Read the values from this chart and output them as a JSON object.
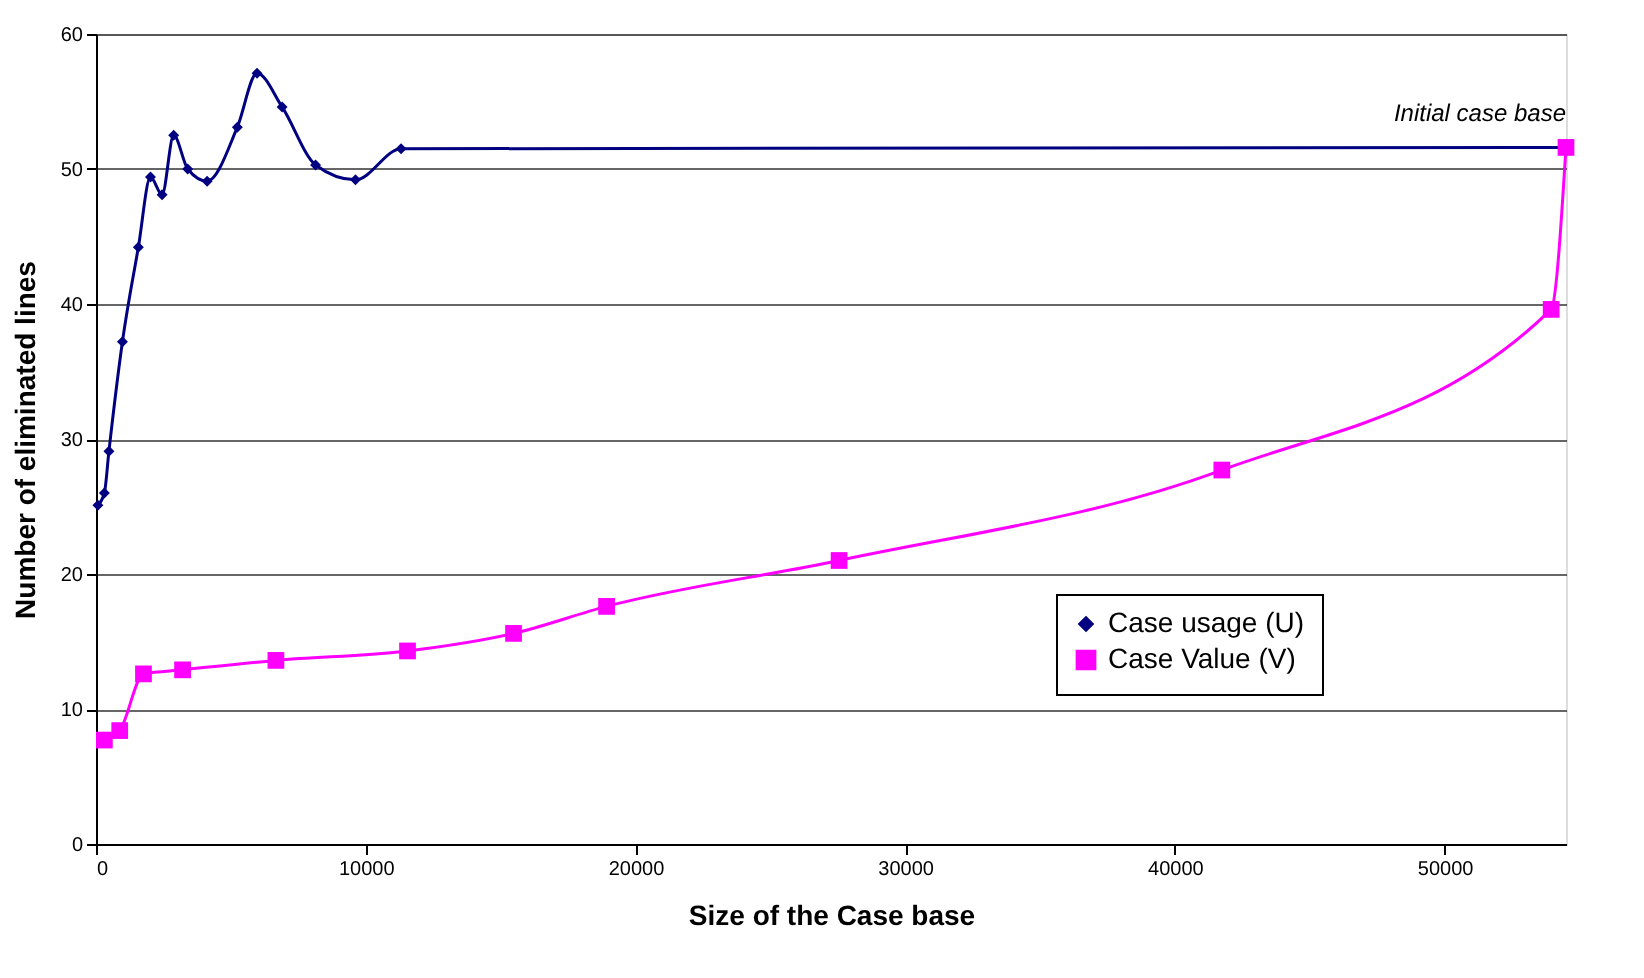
{
  "chart_data": {
    "type": "line",
    "xlabel": "Size of the Case base",
    "ylabel": "Number of eliminated lines",
    "xlim": [
      0,
      54500
    ],
    "xticks": [
      0,
      10000,
      20000,
      30000,
      40000,
      50000
    ],
    "ylim": [
      0,
      60
    ],
    "yticks": [
      0,
      10,
      20,
      30,
      40,
      50,
      60
    ],
    "grid": "y",
    "legend": "right",
    "line_style": "solid",
    "series": [
      {
        "name": "Case usage (U)",
        "color": "#000080",
        "marker": "diamond",
        "x": [
          70,
          310,
          480,
          980,
          1570,
          2020,
          2450,
          2880,
          3400,
          4120,
          5240,
          5970,
          6900,
          8140,
          9620,
          11310,
          54500
        ],
        "values": [
          25.1,
          26.0,
          29.1,
          37.2,
          44.2,
          49.4,
          48.1,
          52.5,
          50.0,
          49.1,
          53.1,
          57.1,
          54.6,
          50.3,
          49.2,
          51.5,
          51.6
        ]
      },
      {
        "name": "Case Value (V)",
        "color": "#ff00ff",
        "marker": "square",
        "x": [
          310,
          880,
          1760,
          3210,
          6670,
          11550,
          15480,
          18930,
          27550,
          41740,
          53950,
          54500
        ],
        "values": [
          7.7,
          8.4,
          12.6,
          12.9,
          13.6,
          14.3,
          15.6,
          17.6,
          21.0,
          27.7,
          39.6,
          51.6
        ]
      }
    ],
    "annotations": [
      {
        "text": "Initial case base",
        "x": 54500,
        "y": 51.6
      }
    ]
  }
}
